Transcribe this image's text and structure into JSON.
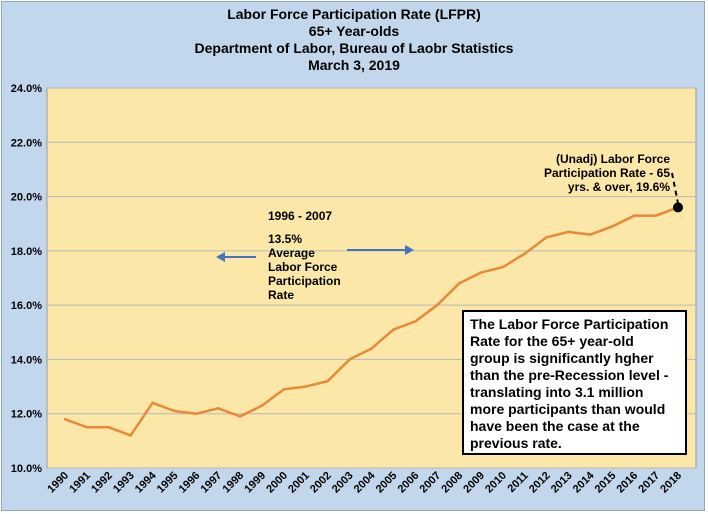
{
  "colors": {
    "background": "#c3d7ec",
    "plot_area": "#fbe7a8",
    "series_line": "#e8893a",
    "arrows": "#4472c4"
  },
  "title_lines": [
    "Labor Force Participation Rate (LFPR)",
    "65+ Year-olds",
    "Department of Labor, Bureau of Laobr Statistics",
    "March 3, 2019"
  ],
  "annotations": {
    "period": "1996 - 2007",
    "average_lines": [
      "13.5%",
      "Average",
      "Labor Force",
      "Participation",
      "Rate"
    ],
    "latest_label_lines": [
      "(Unadj) Labor Force",
      "Participation Rate - 65",
      "yrs. & over, 19.6%"
    ],
    "callout_lines": [
      "The Labor Force Participation",
      "Rate for the 65+ year-old",
      "group is significantly hgher",
      "than the pre-Recession level -",
      "translating into 3.1 million",
      "more participants than would",
      "have been the case at the",
      "previous rate."
    ]
  },
  "chart_data": {
    "type": "line",
    "title": "Labor Force Participation Rate (LFPR) 65+ Year-olds",
    "x": [
      "1990",
      "1991",
      "1992",
      "1993",
      "1994",
      "1995",
      "1996",
      "1997",
      "1998",
      "1999",
      "2000",
      "2001",
      "2002",
      "2003",
      "2004",
      "2005",
      "2006",
      "2007",
      "2008",
      "2009",
      "2010",
      "2011",
      "2012",
      "2013",
      "2014",
      "2015",
      "2016",
      "2017",
      "2018"
    ],
    "series": [
      {
        "values": [
          11.8,
          11.5,
          11.5,
          11.2,
          12.4,
          12.1,
          12.0,
          12.2,
          11.9,
          12.3,
          12.9,
          13.0,
          13.2,
          14.0,
          14.4,
          15.1,
          15.4,
          16.0,
          16.8,
          17.2,
          17.4,
          17.9,
          18.5,
          18.7,
          18.6,
          18.9,
          19.3,
          19.3,
          19.6
        ]
      }
    ],
    "y_ticks": [
      "10.0%",
      "12.0%",
      "14.0%",
      "16.0%",
      "18.0%",
      "20.0%",
      "22.0%",
      "24.0%"
    ],
    "ylim": [
      10,
      24
    ],
    "grid": true,
    "highlight_point": {
      "x": "2018",
      "value": 19.6
    }
  }
}
